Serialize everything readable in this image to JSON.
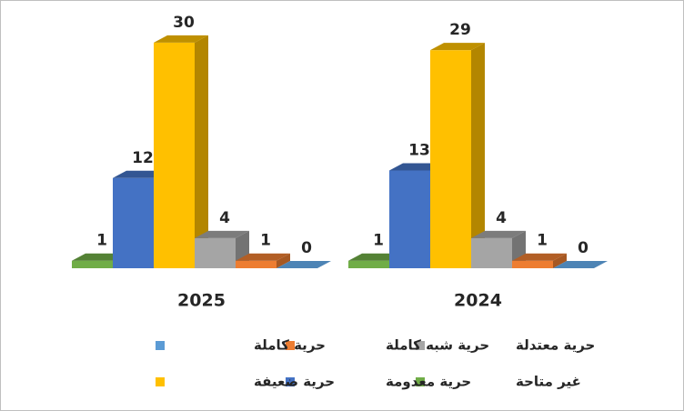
{
  "chart_data": {
    "type": "bar3d",
    "categories": [
      "2025",
      "2024"
    ],
    "series": [
      {
        "name": "غير متاحة",
        "color": "#70ad47",
        "values": [
          1,
          1
        ]
      },
      {
        "name": "حرية معدومة",
        "color": "#4472c4",
        "values": [
          12,
          13
        ]
      },
      {
        "name": "حرية ضعيفة",
        "color": "#ffc000",
        "values": [
          30,
          29
        ]
      },
      {
        "name": "حرية معتدلة",
        "color": "#a5a5a5",
        "values": [
          4,
          4
        ]
      },
      {
        "name": "حرية شبه كاملة",
        "color": "#ed7d31",
        "values": [
          1,
          1
        ]
      },
      {
        "name": "حرية كاملة",
        "color": "#5b9bd5",
        "values": [
          0,
          0
        ]
      }
    ]
  }
}
